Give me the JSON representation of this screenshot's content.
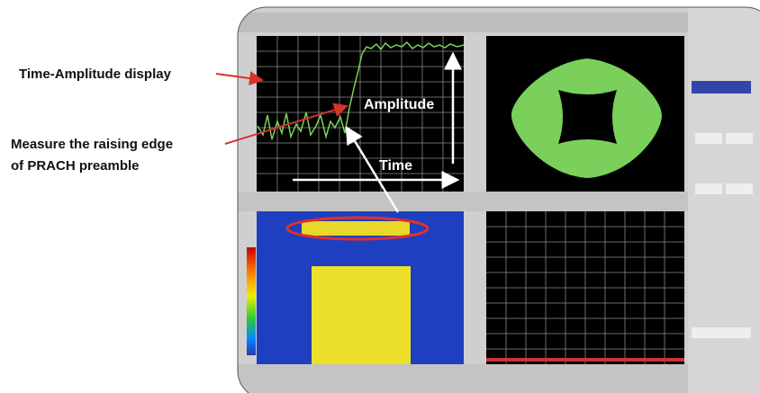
{
  "callouts": {
    "time_amplitude": "Time-Amplitude display",
    "measure_line1": "Measure the raising edge",
    "measure_line2": "of PRACH preamble",
    "amplitude": "Amplitude",
    "time": "Time"
  }
}
